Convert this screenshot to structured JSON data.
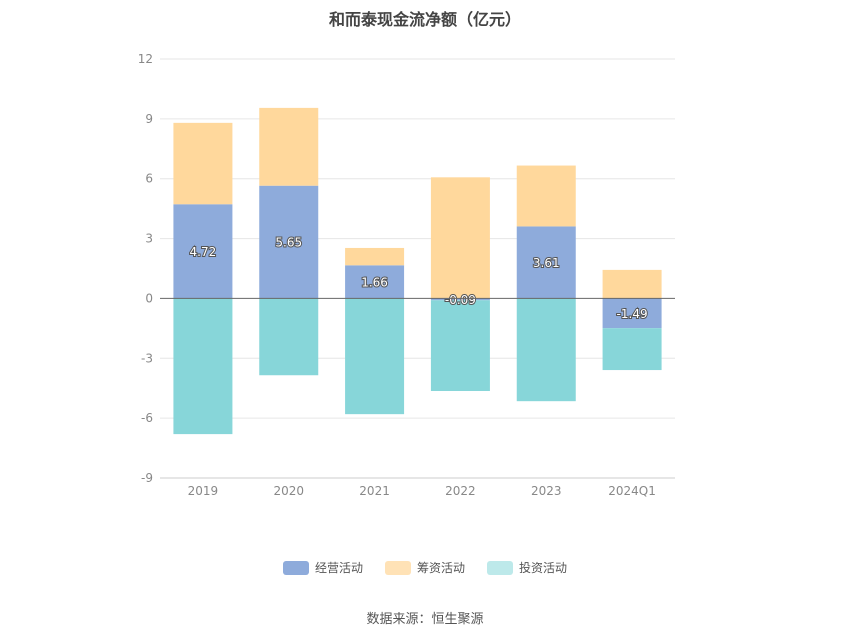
{
  "chart_data": {
    "type": "bar",
    "stacked": true,
    "title": "和而泰现金流净额（亿元）",
    "categories": [
      "2019",
      "2020",
      "2021",
      "2022",
      "2023",
      "2024Q1"
    ],
    "ylim": [
      -9,
      12
    ],
    "yticks": [
      12,
      9,
      6,
      3,
      0,
      -3,
      -6,
      -9
    ],
    "grid": true,
    "series": [
      {
        "name": "经营活动",
        "color": "#8eabdb",
        "values": [
          4.72,
          5.65,
          1.66,
          -0.09,
          3.61,
          -1.49
        ],
        "labeled": true
      },
      {
        "name": "筹资活动",
        "color": "#ffd89c",
        "values": [
          4.08,
          3.9,
          0.87,
          6.07,
          3.05,
          1.43
        ],
        "labeled": false
      },
      {
        "name": "投资活动",
        "color": "#87d6d9",
        "values": [
          -6.8,
          -3.85,
          -5.8,
          -4.55,
          -5.15,
          -2.1
        ],
        "labeled": false
      }
    ],
    "data_labels": [
      "4.72",
      "5.65",
      "1.66",
      "-0.09",
      "3.61",
      "-1.49"
    ],
    "legend_position": "bottom"
  },
  "legend": [
    {
      "label": "经营活动",
      "color": "#8eabdb"
    },
    {
      "label": "筹资活动",
      "color": "#ffe2b6"
    },
    {
      "label": "投资活动",
      "color": "#bde9ea"
    }
  ],
  "source": "数据来源：恒生聚源"
}
